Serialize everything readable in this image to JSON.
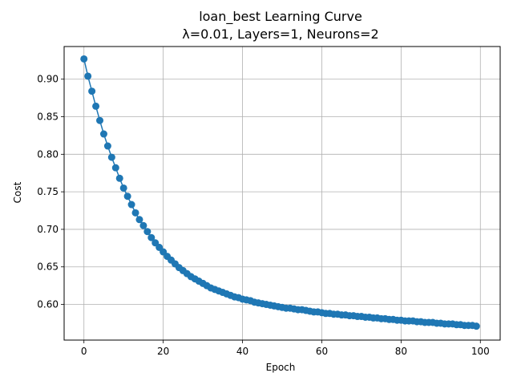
{
  "chart_data": {
    "type": "line",
    "title": "loan_best Learning Curve",
    "subtitle": "λ=0.01, Layers=1, Neurons=2",
    "xlabel": "Epoch",
    "ylabel": "Cost",
    "xlim": [
      -5,
      105
    ],
    "ylim": [
      0.5525,
      0.9435
    ],
    "xticks": [
      0,
      20,
      40,
      60,
      80,
      100
    ],
    "yticks": [
      0.6,
      0.65,
      0.7,
      0.75,
      0.8,
      0.85,
      0.9
    ],
    "grid": true,
    "marker": "circle",
    "color": "#1f77b4",
    "series": [
      {
        "x": [
          0,
          1,
          2,
          3,
          4,
          5,
          6,
          7,
          8,
          9,
          10,
          11,
          12,
          13,
          14,
          15,
          16,
          17,
          18,
          19,
          20,
          21,
          22,
          23,
          24,
          25,
          26,
          27,
          28,
          29,
          30,
          31,
          32,
          33,
          34,
          35,
          36,
          37,
          38,
          39,
          40,
          41,
          42,
          43,
          44,
          45,
          46,
          47,
          48,
          49,
          50,
          51,
          52,
          53,
          54,
          55,
          56,
          57,
          58,
          59,
          60,
          61,
          62,
          63,
          64,
          65,
          66,
          67,
          68,
          69,
          70,
          71,
          72,
          73,
          74,
          75,
          76,
          77,
          78,
          79,
          80,
          81,
          82,
          83,
          84,
          85,
          86,
          87,
          88,
          89,
          90,
          91,
          92,
          93,
          94,
          95,
          96,
          97,
          98,
          99
        ],
        "values": [
          0.927,
          0.904,
          0.884,
          0.864,
          0.845,
          0.827,
          0.811,
          0.796,
          0.782,
          0.768,
          0.755,
          0.744,
          0.733,
          0.722,
          0.713,
          0.705,
          0.697,
          0.689,
          0.682,
          0.676,
          0.67,
          0.664,
          0.659,
          0.654,
          0.649,
          0.645,
          0.641,
          0.637,
          0.634,
          0.631,
          0.628,
          0.625,
          0.622,
          0.62,
          0.618,
          0.616,
          0.614,
          0.612,
          0.61,
          0.609,
          0.607,
          0.606,
          0.605,
          0.603,
          0.602,
          0.601,
          0.6,
          0.599,
          0.598,
          0.597,
          0.596,
          0.595,
          0.595,
          0.594,
          0.593,
          0.593,
          0.592,
          0.591,
          0.59,
          0.59,
          0.589,
          0.588,
          0.588,
          0.587,
          0.587,
          0.586,
          0.586,
          0.585,
          0.585,
          0.584,
          0.584,
          0.583,
          0.583,
          0.582,
          0.582,
          0.581,
          0.581,
          0.58,
          0.58,
          0.579,
          0.579,
          0.578,
          0.578,
          0.578,
          0.577,
          0.577,
          0.576,
          0.576,
          0.576,
          0.575,
          0.575,
          0.574,
          0.574,
          0.574,
          0.573,
          0.573,
          0.572,
          0.572,
          0.572,
          0.571
        ]
      }
    ]
  }
}
